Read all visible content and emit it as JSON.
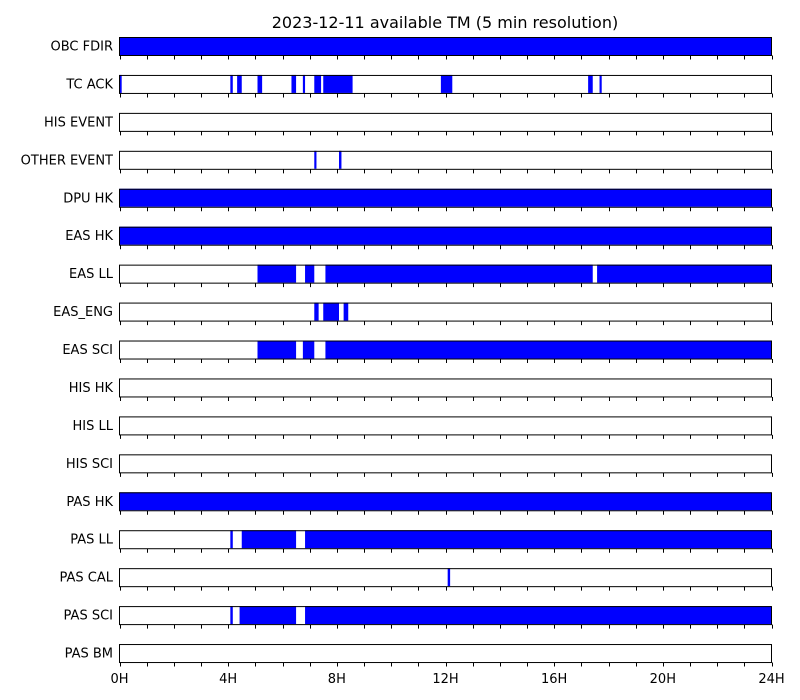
{
  "chart_data": {
    "type": "timeline",
    "title": "2023-12-11 available TM (5 min resolution)",
    "xlim": [
      0,
      24
    ],
    "x_unit": "hours",
    "xticks": [
      {
        "value": 0,
        "label": "0H"
      },
      {
        "value": 4,
        "label": "4H"
      },
      {
        "value": 8,
        "label": "8H"
      },
      {
        "value": 12,
        "label": "12H"
      },
      {
        "value": 16,
        "label": "16H"
      },
      {
        "value": 20,
        "label": "20H"
      },
      {
        "value": 24,
        "label": "24H"
      }
    ],
    "minor_tick_step": 1,
    "fill_color": "#0000ff",
    "rows": [
      {
        "name": "OBC FDIR",
        "intervals": [
          [
            0,
            24
          ]
        ]
      },
      {
        "name": "TC ACK",
        "intervals": [
          [
            0,
            0.08
          ],
          [
            4.08,
            4.17
          ],
          [
            4.33,
            4.5
          ],
          [
            5.08,
            5.25
          ],
          [
            6.33,
            6.5
          ],
          [
            6.75,
            6.83
          ],
          [
            7.17,
            7.42
          ],
          [
            7.5,
            8.58
          ],
          [
            11.83,
            12.25
          ],
          [
            17.25,
            17.42
          ],
          [
            17.67,
            17.75
          ]
        ]
      },
      {
        "name": "HIS EVENT",
        "intervals": []
      },
      {
        "name": "OTHER EVENT",
        "intervals": [
          [
            7.17,
            7.25
          ],
          [
            8.08,
            8.17
          ]
        ]
      },
      {
        "name": "DPU HK",
        "intervals": [
          [
            0,
            24
          ]
        ]
      },
      {
        "name": "EAS HK",
        "intervals": [
          [
            0,
            24
          ]
        ]
      },
      {
        "name": "EAS LL",
        "intervals": [
          [
            5.08,
            6.5
          ],
          [
            6.83,
            7.17
          ],
          [
            7.58,
            17.42
          ],
          [
            17.58,
            24
          ]
        ]
      },
      {
        "name": "EAS_ENG",
        "intervals": [
          [
            7.17,
            7.33
          ],
          [
            7.5,
            8.08
          ],
          [
            8.25,
            8.42
          ]
        ]
      },
      {
        "name": "EAS SCI",
        "intervals": [
          [
            5.08,
            6.5
          ],
          [
            6.75,
            7.17
          ],
          [
            7.58,
            24
          ]
        ]
      },
      {
        "name": "HIS HK",
        "intervals": []
      },
      {
        "name": "HIS LL",
        "intervals": []
      },
      {
        "name": "HIS SCI",
        "intervals": []
      },
      {
        "name": "PAS HK",
        "intervals": [
          [
            0,
            24
          ]
        ]
      },
      {
        "name": "PAS LL",
        "intervals": [
          [
            4.08,
            4.17
          ],
          [
            4.5,
            6.5
          ],
          [
            6.83,
            24
          ]
        ]
      },
      {
        "name": "PAS CAL",
        "intervals": [
          [
            12.08,
            12.17
          ]
        ]
      },
      {
        "name": "PAS SCI",
        "intervals": [
          [
            4.08,
            4.17
          ],
          [
            4.42,
            6.5
          ],
          [
            6.83,
            24
          ]
        ]
      },
      {
        "name": "PAS BM",
        "intervals": []
      }
    ]
  }
}
